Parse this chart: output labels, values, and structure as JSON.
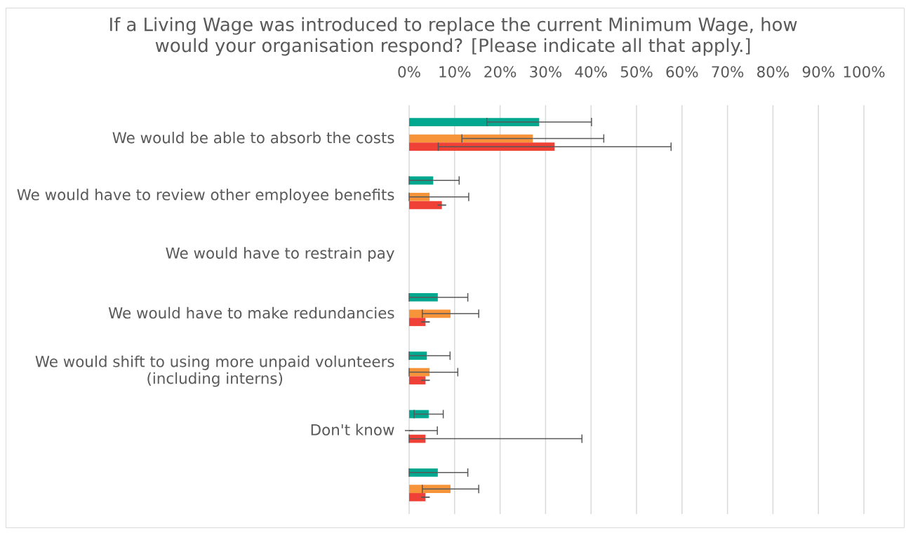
{
  "chart_data": {
    "type": "bar",
    "orientation": "horizontal",
    "title": "If a Living Wage was introduced to replace the current Minimum Wage, how would your organisation respond? [Please indicate all that apply.]",
    "categories": [
      "We would be able to absorb the costs",
      "We would have to review other employee benefits",
      "We would have to restrain pay",
      "We would have to make redundancies",
      "We would shift to using more unpaid volunteers (including interns)",
      "Don't know",
      null
    ],
    "series": [
      {
        "color": "#00a88f",
        "values": [
          28.6,
          5.3,
          0,
          6.3,
          3.9,
          4.3,
          6.3
        ],
        "errors": [
          11.5,
          [
            0,
            11.0
          ],
          null,
          [
            0,
            12.9
          ],
          [
            0,
            9.0
          ],
          3.2,
          [
            0,
            12.9
          ]
        ]
      },
      {
        "color": "#f7943a",
        "values": [
          27.2,
          4.5,
          0,
          9.1,
          4.5,
          0,
          9.1
        ],
        "errors": [
          15.6,
          [
            0,
            13.1
          ],
          null,
          6.2,
          [
            0,
            10.7
          ],
          [
            0,
            6.2
          ],
          6.2
        ]
      },
      {
        "color": "#ef4136",
        "values": [
          32.0,
          7.2,
          0,
          3.6,
          3.6,
          3.6,
          3.6
        ],
        "errors": [
          25.6,
          0,
          null,
          0,
          0,
          [
            0,
            38.0
          ],
          0
        ]
      }
    ],
    "xlim": [
      0,
      100
    ],
    "xticks": [
      {
        "value": 0,
        "label": "0%"
      },
      {
        "value": 10,
        "label": "10%"
      },
      {
        "value": 20,
        "label": "20%"
      },
      {
        "value": 30,
        "label": "30%"
      },
      {
        "value": 40,
        "label": "40%"
      },
      {
        "value": 50,
        "label": "50%"
      },
      {
        "value": 60,
        "label": "60%"
      },
      {
        "value": 70,
        "label": "70%"
      },
      {
        "value": 80,
        "label": "80%"
      },
      {
        "value": 90,
        "label": "90%"
      },
      {
        "value": 100,
        "label": "100%"
      }
    ],
    "grid": "x"
  }
}
